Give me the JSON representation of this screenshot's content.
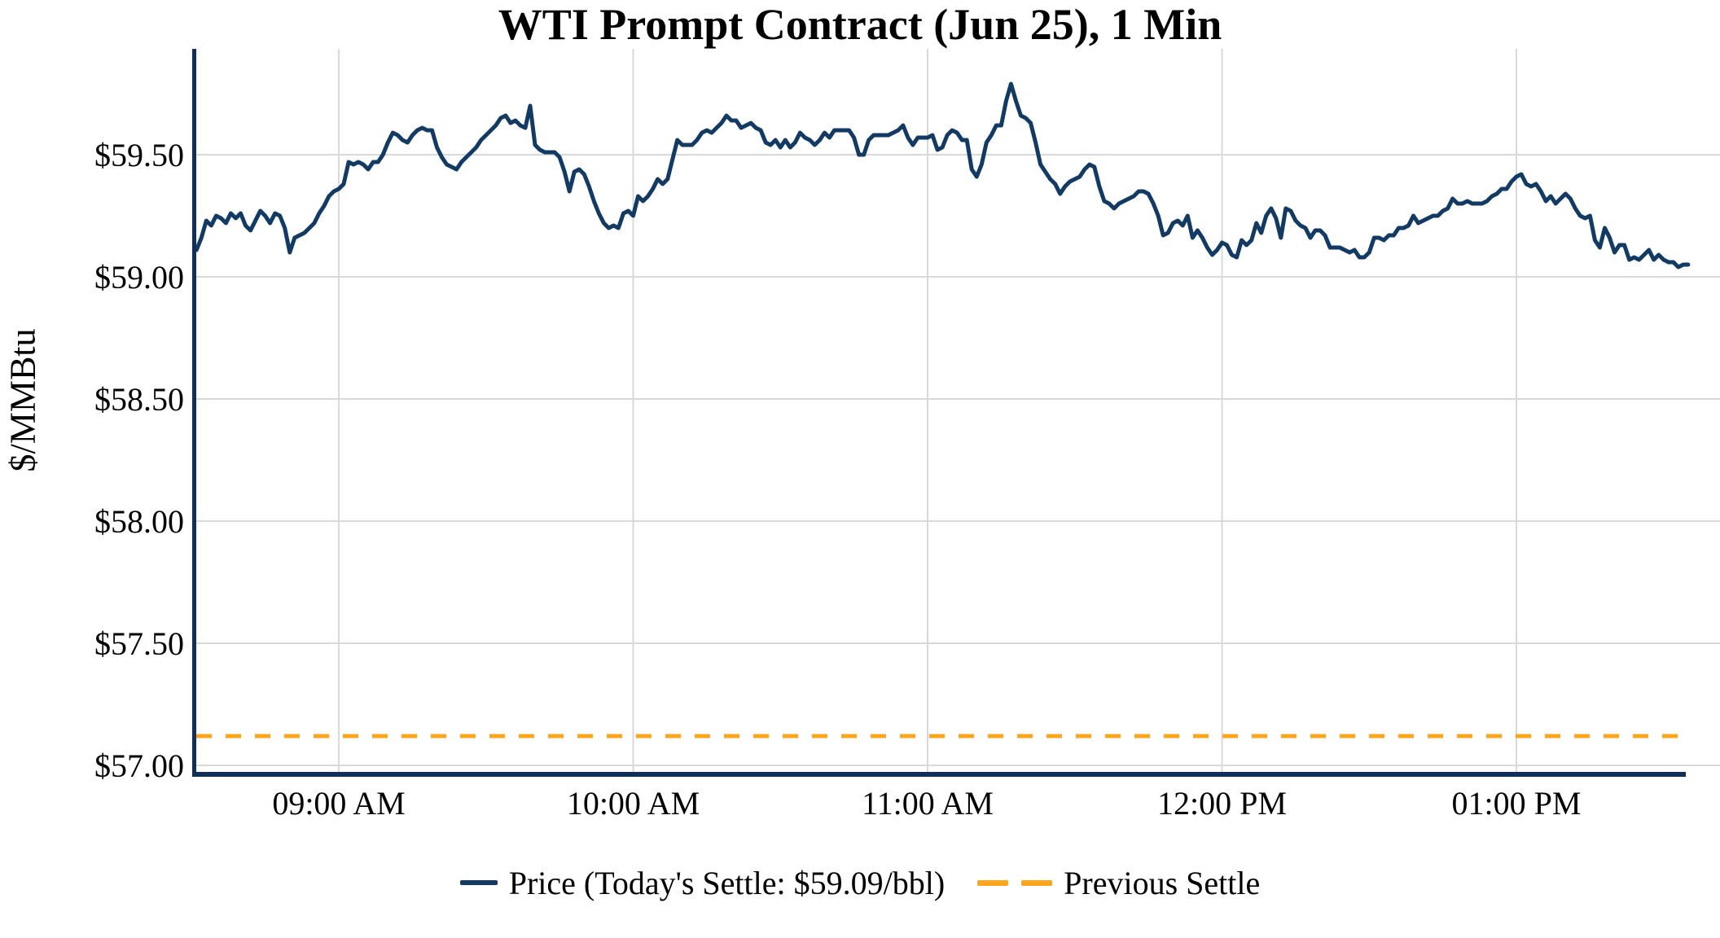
{
  "chart": {
    "title": "WTI Prompt Contract (Jun 25), 1 Min",
    "y_axis_title": "$/MMBtu",
    "legend": {
      "price_label": "Price (Today's Settle: $59.09/bbl)",
      "previous_settle_label": "Previous Settle"
    }
  },
  "chart_data": {
    "type": "line",
    "title": "WTI Prompt Contract (Jun 25), 1 Min",
    "xlabel": "",
    "ylabel": "$/MMBtu",
    "ylim": [
      57.0,
      59.93
    ],
    "grid": true,
    "legend_position": "bottom",
    "y_ticks": [
      {
        "value": 59.5,
        "label": "$59.50"
      },
      {
        "value": 59.0,
        "label": "$59.00"
      },
      {
        "value": 58.5,
        "label": "$58.50"
      },
      {
        "value": 58.0,
        "label": "$58.00"
      },
      {
        "value": 57.5,
        "label": "$57.50"
      },
      {
        "value": 57.0,
        "label": "$57.00"
      }
    ],
    "x_ticks": [
      {
        "time": "09:00",
        "label": "09:00 AM"
      },
      {
        "time": "10:00",
        "label": "10:00 AM"
      },
      {
        "time": "11:00",
        "label": "11:00 AM"
      },
      {
        "time": "12:00",
        "label": "12:00 PM"
      },
      {
        "time": "13:00",
        "label": "01:00 PM"
      }
    ],
    "today_settle_per_bbl": 59.09,
    "series": [
      {
        "name": "Price (Today's Settle: $59.09/bbl)",
        "style": "solid",
        "color": "#123a63",
        "start_time": "08:31",
        "interval_minutes": 1,
        "prices": [
          59.11,
          59.16,
          59.23,
          59.21,
          59.25,
          59.24,
          59.22,
          59.26,
          59.24,
          59.26,
          59.21,
          59.19,
          59.23,
          59.27,
          59.25,
          59.22,
          59.26,
          59.25,
          59.2,
          59.1,
          59.16,
          59.17,
          59.18,
          59.2,
          59.22,
          59.26,
          59.29,
          59.33,
          59.35,
          59.36,
          59.38,
          59.47,
          59.46,
          59.47,
          59.46,
          59.44,
          59.47,
          59.47,
          59.5,
          59.55,
          59.59,
          59.58,
          59.56,
          59.55,
          59.58,
          59.6,
          59.61,
          59.6,
          59.6,
          59.53,
          59.49,
          59.46,
          59.45,
          59.44,
          59.47,
          59.49,
          59.51,
          59.53,
          59.56,
          59.58,
          59.6,
          59.62,
          59.65,
          59.66,
          59.63,
          59.64,
          59.62,
          59.61,
          59.7,
          59.54,
          59.52,
          59.51,
          59.51,
          59.51,
          59.49,
          59.43,
          59.35,
          59.43,
          59.44,
          59.42,
          59.37,
          59.31,
          59.26,
          59.22,
          59.2,
          59.21,
          59.2,
          59.26,
          59.27,
          59.25,
          59.33,
          59.31,
          59.33,
          59.36,
          59.4,
          59.38,
          59.4,
          59.48,
          59.56,
          59.54,
          59.54,
          59.54,
          59.56,
          59.59,
          59.6,
          59.59,
          59.61,
          59.63,
          59.66,
          59.64,
          59.64,
          59.61,
          59.62,
          59.63,
          59.61,
          59.6,
          59.55,
          59.54,
          59.56,
          59.53,
          59.56,
          59.53,
          59.55,
          59.59,
          59.57,
          59.56,
          59.54,
          59.56,
          59.59,
          59.57,
          59.6,
          59.6,
          59.6,
          59.6,
          59.57,
          59.5,
          59.5,
          59.56,
          59.58,
          59.58,
          59.58,
          59.58,
          59.59,
          59.6,
          59.62,
          59.57,
          59.54,
          59.57,
          59.57,
          59.57,
          59.58,
          59.52,
          59.53,
          59.58,
          59.6,
          59.59,
          59.56,
          59.56,
          59.44,
          59.41,
          59.46,
          59.55,
          59.58,
          59.62,
          59.62,
          59.72,
          59.79,
          59.72,
          59.66,
          59.65,
          59.63,
          59.55,
          59.46,
          59.43,
          59.4,
          59.38,
          59.34,
          59.37,
          59.39,
          59.4,
          59.41,
          59.44,
          59.46,
          59.45,
          59.37,
          59.31,
          59.3,
          59.28,
          59.3,
          59.31,
          59.32,
          59.33,
          59.35,
          59.35,
          59.34,
          59.3,
          59.25,
          59.17,
          59.18,
          59.22,
          59.23,
          59.21,
          59.25,
          59.16,
          59.19,
          59.16,
          59.12,
          59.09,
          59.11,
          59.14,
          59.13,
          59.09,
          59.08,
          59.15,
          59.13,
          59.15,
          59.22,
          59.18,
          59.25,
          59.28,
          59.24,
          59.16,
          59.28,
          59.27,
          59.23,
          59.21,
          59.2,
          59.16,
          59.19,
          59.19,
          59.17,
          59.12,
          59.12,
          59.12,
          59.11,
          59.1,
          59.11,
          59.08,
          59.08,
          59.1,
          59.16,
          59.16,
          59.15,
          59.17,
          59.17,
          59.2,
          59.2,
          59.21,
          59.25,
          59.22,
          59.23,
          59.24,
          59.25,
          59.25,
          59.27,
          59.28,
          59.32,
          59.3,
          59.3,
          59.31,
          59.3,
          59.3,
          59.3,
          59.31,
          59.33,
          59.34,
          59.36,
          59.36,
          59.39,
          59.41,
          59.42,
          59.38,
          59.37,
          59.38,
          59.35,
          59.31,
          59.33,
          59.3,
          59.32,
          59.34,
          59.32,
          59.28,
          59.25,
          59.24,
          59.25,
          59.15,
          59.12,
          59.2,
          59.16,
          59.1,
          59.13,
          59.13,
          59.07,
          59.08,
          59.07,
          59.09,
          59.11,
          59.07,
          59.09,
          59.07,
          59.06,
          59.06,
          59.04,
          59.05,
          59.05
        ]
      },
      {
        "name": "Previous Settle",
        "style": "dashed",
        "color": "#FFA51E",
        "value": 57.12
      }
    ],
    "colors": {
      "price_line": "#123a63",
      "previous_settle_line": "#FFA51E",
      "gridline": "#d9d9d9",
      "axis_spine": "#10305a",
      "text": "#000000"
    }
  }
}
